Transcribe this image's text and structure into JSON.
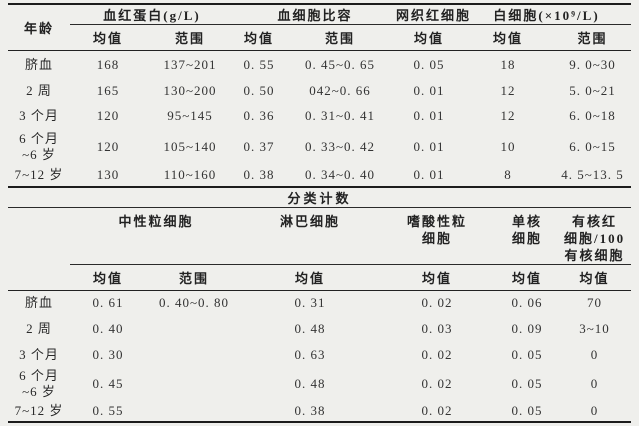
{
  "section1": {
    "age_header": "年龄",
    "sub_mean": "均值",
    "sub_range": "范围",
    "groups": {
      "hb": "血红蛋白(g/L)",
      "hct": "血细胞比容",
      "retic": "网织红细胞",
      "wbc": "白细胞(×10⁹/L)"
    },
    "rows": [
      {
        "age": "脐血",
        "hb_mean": "168",
        "hb_range": "137~201",
        "hct_mean": "0. 55",
        "hct_range": "0. 45~0. 65",
        "retic_mean": "0. 05",
        "wbc_mean": "18",
        "wbc_range": "9. 0~30"
      },
      {
        "age": "2 周",
        "hb_mean": "165",
        "hb_range": "130~200",
        "hct_mean": "0. 50",
        "hct_range": "042~0. 66",
        "retic_mean": "0. 01",
        "wbc_mean": "12",
        "wbc_range": "5. 0~21"
      },
      {
        "age": "3 个月",
        "hb_mean": "120",
        "hb_range": "95~145",
        "hct_mean": "0. 36",
        "hct_range": "0. 31~0. 41",
        "retic_mean": "0. 01",
        "wbc_mean": "12",
        "wbc_range": "6. 0~18"
      },
      {
        "age": "6 个月\n~6 岁",
        "hb_mean": "120",
        "hb_range": "105~140",
        "hct_mean": "0. 37",
        "hct_range": "0. 33~0. 42",
        "retic_mean": "0. 01",
        "wbc_mean": "10",
        "wbc_range": "6. 0~15"
      },
      {
        "age": "7~12 岁",
        "hb_mean": "130",
        "hb_range": "110~160",
        "hct_mean": "0. 38",
        "hct_range": "0. 34~0. 40",
        "retic_mean": "0. 01",
        "wbc_mean": "8",
        "wbc_range": "4. 5~13. 5"
      }
    ]
  },
  "section2": {
    "title": "分类计数",
    "sub_mean": "均值",
    "sub_range": "范围",
    "groups": {
      "neutrophil": "中性粒细胞",
      "lymphocyte": "淋巴细胞",
      "eosinophil": "嗜酸性粒\n细胞",
      "monocyte": "单核\n细胞",
      "nrbc": "有核红\n细胞/100\n有核细胞"
    },
    "rows": [
      {
        "age": "脐血",
        "neut_mean": "0. 61",
        "neut_range": "0. 40~0. 80",
        "lymph_mean": "0. 31",
        "eos_mean": "0. 02",
        "mono_mean": "0. 06",
        "nrbc_mean": "70"
      },
      {
        "age": "2 周",
        "neut_mean": "0. 40",
        "neut_range": "",
        "lymph_mean": "0. 48",
        "eos_mean": "0. 03",
        "mono_mean": "0. 09",
        "nrbc_mean": "3~10"
      },
      {
        "age": "3 个月",
        "neut_mean": "0. 30",
        "neut_range": "",
        "lymph_mean": "0. 63",
        "eos_mean": "0. 02",
        "mono_mean": "0. 05",
        "nrbc_mean": "0"
      },
      {
        "age": "6 个月\n~6 岁",
        "neut_mean": "0. 45",
        "neut_range": "",
        "lymph_mean": "0. 48",
        "eos_mean": "0. 02",
        "mono_mean": "0. 05",
        "nrbc_mean": "0"
      },
      {
        "age": "7~12 岁",
        "neut_mean": "0. 55",
        "neut_range": "",
        "lymph_mean": "0. 38",
        "eos_mean": "0. 02",
        "mono_mean": "0. 05",
        "nrbc_mean": "0"
      }
    ]
  }
}
